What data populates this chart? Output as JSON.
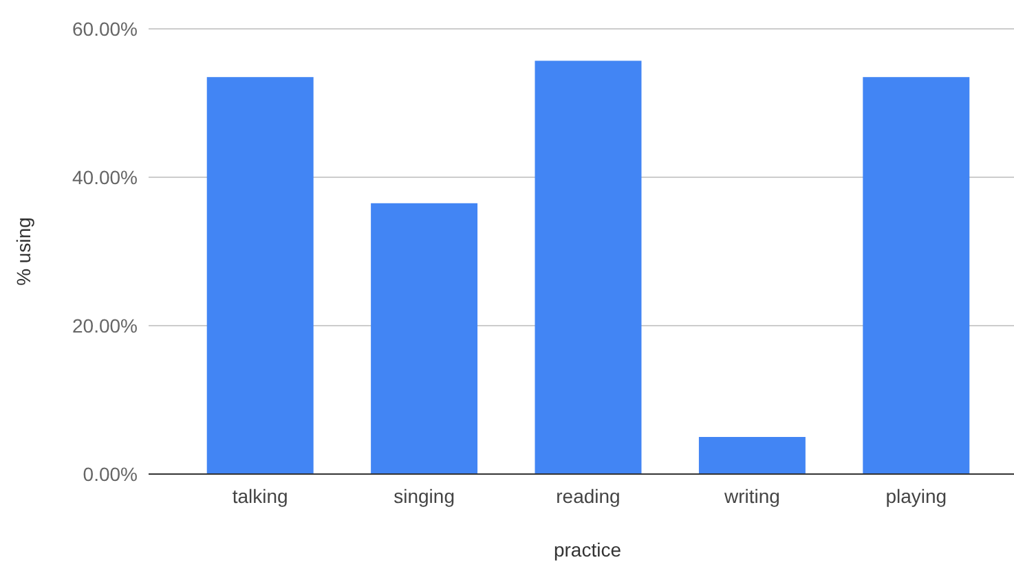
{
  "chart_data": {
    "type": "bar",
    "xlabel": "practice",
    "ylabel": "% using",
    "categories": [
      "talking",
      "singing",
      "reading",
      "writing",
      "playing"
    ],
    "values": [
      53.5,
      36.5,
      55.7,
      5.0,
      53.5
    ],
    "color": "#4285f4",
    "ylim": [
      0,
      60
    ],
    "yticks": [
      {
        "value": 0,
        "label": "0.00%"
      },
      {
        "value": 20,
        "label": "20.00%"
      },
      {
        "value": 40,
        "label": "40.00%"
      },
      {
        "value": 60,
        "label": "60.00%"
      }
    ],
    "grid": "y"
  }
}
